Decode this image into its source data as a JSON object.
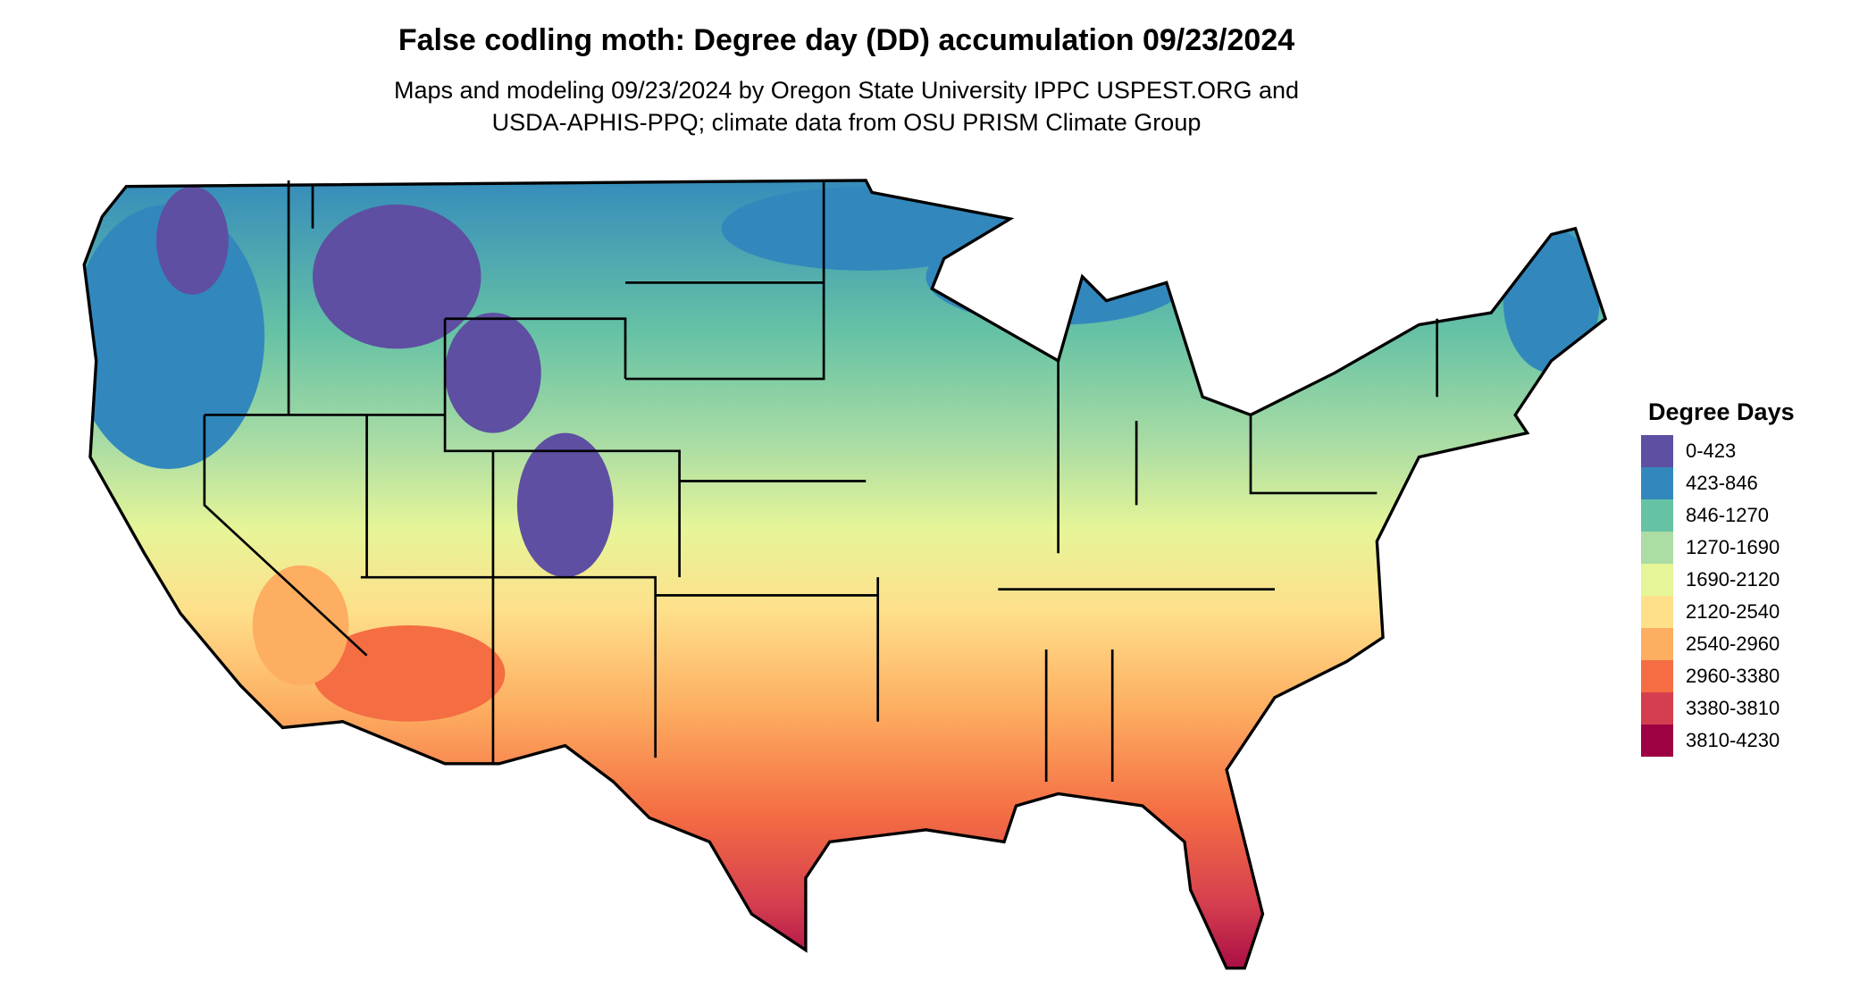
{
  "title": "False codling moth: Degree day (DD) accumulation 09/23/2024",
  "subtitle_line1": "Maps and modeling 09/23/2024 by Oregon State University IPPC USPEST.ORG and",
  "subtitle_line2": "USDA-APHIS-PPQ; climate data from OSU PRISM Climate Group",
  "legend": {
    "title": "Degree Days",
    "items": [
      {
        "label": "0-423",
        "color": "#5E4FA2"
      },
      {
        "label": "423-846",
        "color": "#3288BD"
      },
      {
        "label": "846-1270",
        "color": "#66C2A5"
      },
      {
        "label": "1270-1690",
        "color": "#ABDDA4"
      },
      {
        "label": "1690-2120",
        "color": "#E6F598"
      },
      {
        "label": "2120-2540",
        "color": "#FEE08B"
      },
      {
        "label": "2540-2960",
        "color": "#FDAE61"
      },
      {
        "label": "2960-3380",
        "color": "#F46D43"
      },
      {
        "label": "3380-3810",
        "color": "#D53E4F"
      },
      {
        "label": "3810-4230",
        "color": "#9E0142"
      }
    ]
  },
  "map": {
    "region": "Contiguous United States",
    "borders": "state outlines in black"
  }
}
